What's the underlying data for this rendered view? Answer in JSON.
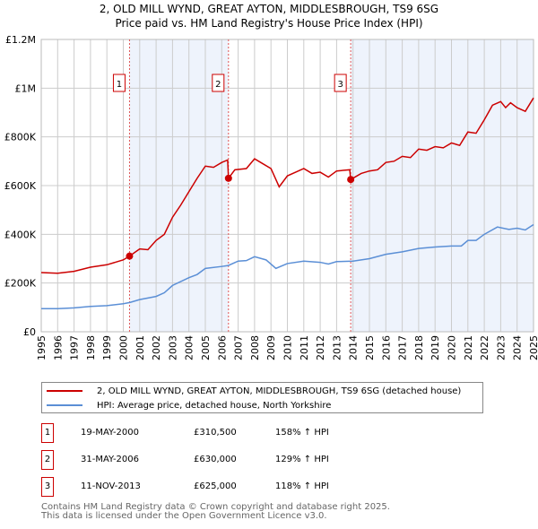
{
  "chart_data": {
    "type": "line",
    "title": "2, OLD MILL WYND, GREAT AYTON, MIDDLESBROUGH, TS9 6SG",
    "subtitle": "Price paid vs. HM Land Registry's House Price Index (HPI)",
    "xlim": [
      1995,
      2025
    ],
    "ylim": [
      0,
      1200000
    ],
    "x_ticks": [
      "1995",
      "1996",
      "1997",
      "1998",
      "1999",
      "2000",
      "2001",
      "2002",
      "2003",
      "2004",
      "2005",
      "2006",
      "2007",
      "2008",
      "2009",
      "2010",
      "2011",
      "2012",
      "2013",
      "2014",
      "2015",
      "2016",
      "2017",
      "2018",
      "2019",
      "2020",
      "2021",
      "2022",
      "2023",
      "2024",
      "2025"
    ],
    "y_ticks": [
      {
        "v": 0,
        "label": "£0"
      },
      {
        "v": 200000,
        "label": "£200K"
      },
      {
        "v": 400000,
        "label": "£400K"
      },
      {
        "v": 600000,
        "label": "£600K"
      },
      {
        "v": 800000,
        "label": "£800K"
      },
      {
        "v": 1000000,
        "label": "£1M"
      },
      {
        "v": 1200000,
        "label": "£1.2M"
      }
    ],
    "grid": true,
    "series": [
      {
        "name": "2, OLD MILL WYND, GREAT AYTON, MIDDLESBROUGH, TS9 6SG (detached house)",
        "color": "#cc0000",
        "x": [
          1995,
          1996,
          1997,
          1998,
          1999,
          2000,
          2000.38,
          2001,
          2001.5,
          2002,
          2002.5,
          2003,
          2003.5,
          2004,
          2004.5,
          2005,
          2005.5,
          2006,
          2006.36,
          2006.41,
          2006.8,
          2007.5,
          2008,
          2008.5,
          2009,
          2009.5,
          2010,
          2010.5,
          2011,
          2011.5,
          2012,
          2012.5,
          2013,
          2013.8,
          2013.86,
          2014.5,
          2015,
          2015.5,
          2016,
          2016.5,
          2017,
          2017.5,
          2018,
          2018.5,
          2019,
          2019.5,
          2020,
          2020.5,
          2021,
          2021.5,
          2022,
          2022.5,
          2023,
          2023.3,
          2023.6,
          2024,
          2024.5,
          2025
        ],
        "y": [
          243000,
          240000,
          248000,
          265000,
          275000,
          295000,
          310500,
          340000,
          337000,
          375000,
          400000,
          470000,
          520000,
          575000,
          630000,
          680000,
          675000,
          695000,
          705000,
          630000,
          665000,
          670000,
          710000,
          690000,
          670000,
          595000,
          640000,
          655000,
          670000,
          650000,
          655000,
          635000,
          660000,
          665000,
          625000,
          650000,
          660000,
          665000,
          695000,
          700000,
          720000,
          715000,
          750000,
          745000,
          760000,
          755000,
          775000,
          765000,
          820000,
          815000,
          870000,
          930000,
          945000,
          920000,
          940000,
          920000,
          905000,
          960000
        ]
      },
      {
        "name": "HPI: Average price, detached house, North Yorkshire",
        "color": "#5b8fd6",
        "x": [
          1995,
          1996,
          1997,
          1998,
          1999,
          2000,
          2000.4,
          2001,
          2002,
          2002.5,
          2003,
          2004,
          2004.5,
          2005,
          2006,
          2006.4,
          2007,
          2007.5,
          2008,
          2008.7,
          2009.3,
          2010,
          2011,
          2012,
          2012.5,
          2013,
          2014,
          2015,
          2016,
          2017,
          2018,
          2019,
          2020,
          2020.6,
          2021,
          2021.5,
          2022,
          2022.8,
          2023.5,
          2024,
          2024.5,
          2025
        ],
        "y": [
          95000,
          95000,
          98000,
          104000,
          107000,
          115000,
          120000,
          132000,
          145000,
          160000,
          190000,
          222000,
          235000,
          260000,
          268000,
          272000,
          290000,
          292000,
          308000,
          295000,
          260000,
          280000,
          290000,
          285000,
          278000,
          288000,
          290000,
          300000,
          318000,
          328000,
          342000,
          348000,
          352000,
          352000,
          375000,
          375000,
          400000,
          430000,
          420000,
          425000,
          418000,
          440000
        ]
      }
    ],
    "sales": [
      {
        "id": "1",
        "x": 2000.38,
        "y": 310500,
        "date": "19-MAY-2000",
        "price": "£310,500",
        "hpi": "158% ↑ HPI"
      },
      {
        "id": "2",
        "x": 2006.41,
        "y": 630000,
        "date": "31-MAY-2006",
        "price": "£630,000",
        "hpi": "129% ↑ HPI"
      },
      {
        "id": "3",
        "x": 2013.86,
        "y": 625000,
        "date": "11-NOV-2013",
        "price": "£625,000",
        "hpi": "118% ↑ HPI"
      }
    ],
    "legend_placement": "below"
  },
  "footer": [
    "Contains HM Land Registry data © Crown copyright and database right 2025.",
    "This data is licensed under the Open Government Licence v3.0."
  ]
}
